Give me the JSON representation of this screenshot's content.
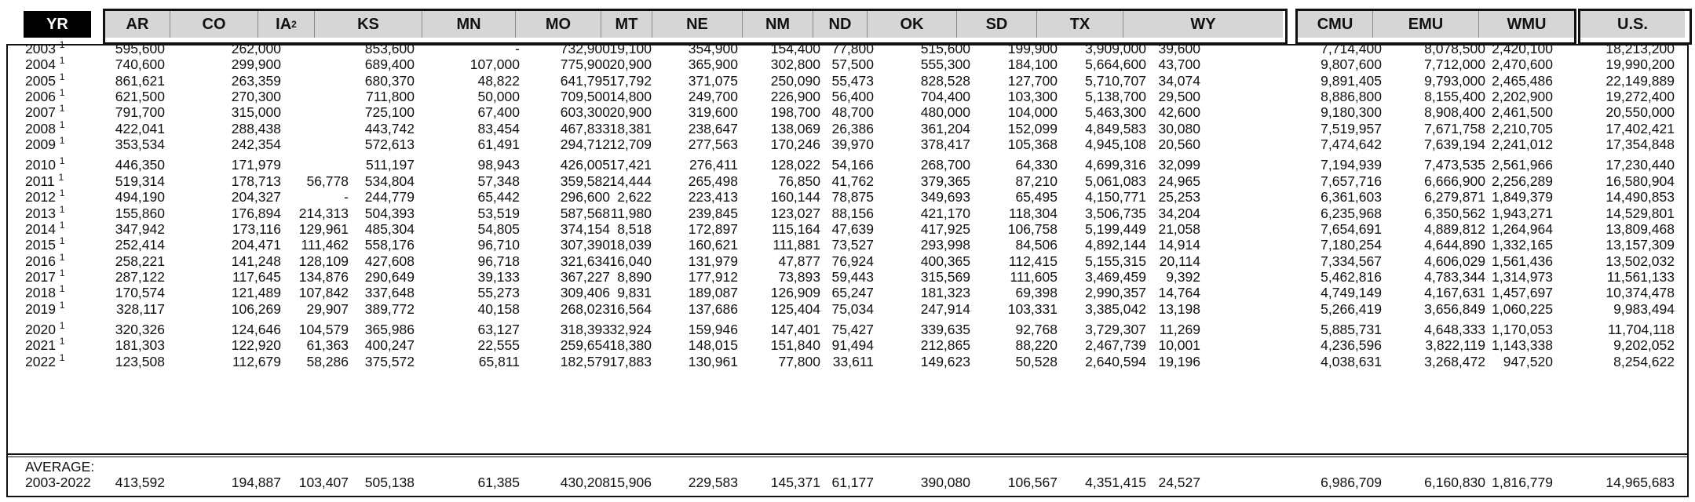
{
  "header": {
    "year_label": "YR",
    "states": [
      "AR",
      "CO",
      "IA",
      "KS",
      "MN",
      "MO",
      "MT",
      "NE",
      "NM",
      "ND",
      "OK",
      "SD",
      "TX",
      "WY"
    ],
    "ia_superscript": "2",
    "regions": [
      "CMU",
      "EMU",
      "WMU"
    ],
    "us": "U.S."
  },
  "rows": [
    {
      "yr": "2003",
      "sup": "1",
      "v": [
        "595,600",
        "262,000",
        "",
        "853,600",
        "-",
        "732,900",
        "19,100",
        "354,900",
        "154,400",
        "77,800",
        "515,600",
        "199,900",
        "3,909,000",
        "39,600"
      ],
      "r": [
        "7,714,400",
        "8,078,500",
        "2,420,100"
      ],
      "us": "18,213,200"
    },
    {
      "yr": "2004",
      "sup": "1",
      "v": [
        "740,600",
        "299,900",
        "",
        "689,400",
        "107,000",
        "775,900",
        "20,900",
        "365,900",
        "302,800",
        "57,500",
        "555,300",
        "184,100",
        "5,664,600",
        "43,700"
      ],
      "r": [
        "9,807,600",
        "7,712,000",
        "2,470,600"
      ],
      "us": "19,990,200"
    },
    {
      "yr": "2005",
      "sup": "1",
      "v": [
        "861,621",
        "263,359",
        "",
        "680,370",
        "48,822",
        "641,795",
        "17,792",
        "371,075",
        "250,090",
        "55,473",
        "828,528",
        "127,700",
        "5,710,707",
        "34,074"
      ],
      "r": [
        "9,891,405",
        "9,793,000",
        "2,465,486"
      ],
      "us": "22,149,889"
    },
    {
      "yr": "2006",
      "sup": "1",
      "v": [
        "621,500",
        "270,300",
        "",
        "711,800",
        "50,000",
        "709,500",
        "14,800",
        "249,700",
        "226,900",
        "56,400",
        "704,400",
        "103,300",
        "5,138,700",
        "29,500"
      ],
      "r": [
        "8,886,800",
        "8,155,400",
        "2,202,900"
      ],
      "us": "19,272,400"
    },
    {
      "yr": "2007",
      "sup": "1",
      "v": [
        "791,700",
        "315,000",
        "",
        "725,100",
        "67,400",
        "603,300",
        "20,900",
        "319,600",
        "198,700",
        "48,700",
        "480,000",
        "104,000",
        "5,463,300",
        "42,600"
      ],
      "r": [
        "9,180,300",
        "8,908,400",
        "2,461,500"
      ],
      "us": "20,550,000"
    },
    {
      "yr": "2008",
      "sup": "1",
      "v": [
        "422,041",
        "288,438",
        "",
        "443,742",
        "83,454",
        "467,833",
        "18,381",
        "238,647",
        "138,069",
        "26,386",
        "361,204",
        "152,099",
        "4,849,583",
        "30,080"
      ],
      "r": [
        "7,519,957",
        "7,671,758",
        "2,210,705"
      ],
      "us": "17,402,421"
    },
    {
      "yr": "2009",
      "sup": "1",
      "v": [
        "353,534",
        "242,354",
        "",
        "572,613",
        "61,491",
        "294,712",
        "12,709",
        "277,563",
        "170,246",
        "39,970",
        "378,417",
        "105,368",
        "4,945,108",
        "20,560"
      ],
      "r": [
        "7,474,642",
        "7,639,194",
        "2,241,012"
      ],
      "us": "17,354,848"
    },
    {
      "yr": "2010",
      "sup": "1",
      "v": [
        "446,350",
        "171,979",
        "",
        "511,197",
        "98,943",
        "426,005",
        "17,421",
        "276,411",
        "128,022",
        "54,166",
        "268,700",
        "64,330",
        "4,699,316",
        "32,099"
      ],
      "r": [
        "7,194,939",
        "7,473,535",
        "2,561,966"
      ],
      "us": "17,230,440"
    },
    {
      "yr": "2011",
      "sup": "1",
      "v": [
        "519,314",
        "178,713",
        "56,778",
        "534,804",
        "57,348",
        "359,582",
        "14,444",
        "265,498",
        "76,850",
        "41,762",
        "379,365",
        "87,210",
        "5,061,083",
        "24,965"
      ],
      "r": [
        "7,657,716",
        "6,666,900",
        "2,256,289"
      ],
      "us": "16,580,904"
    },
    {
      "yr": "2012",
      "sup": "1",
      "v": [
        "494,190",
        "204,327",
        "-",
        "244,779",
        "65,442",
        "296,600",
        "2,622",
        "223,413",
        "160,144",
        "78,875",
        "349,693",
        "65,495",
        "4,150,771",
        "25,253"
      ],
      "r": [
        "6,361,603",
        "6,279,871",
        "1,849,379"
      ],
      "us": "14,490,853"
    },
    {
      "yr": "2013",
      "sup": "1",
      "v": [
        "155,860",
        "176,894",
        "214,313",
        "504,393",
        "53,519",
        "587,568",
        "11,980",
        "239,845",
        "123,027",
        "88,156",
        "421,170",
        "118,304",
        "3,506,735",
        "34,204"
      ],
      "r": [
        "6,235,968",
        "6,350,562",
        "1,943,271"
      ],
      "us": "14,529,801"
    },
    {
      "yr": "2014",
      "sup": "1",
      "v": [
        "347,942",
        "173,116",
        "129,961",
        "485,304",
        "54,805",
        "374,154",
        "8,518",
        "172,897",
        "115,164",
        "47,639",
        "417,925",
        "106,758",
        "5,199,449",
        "21,058"
      ],
      "r": [
        "7,654,691",
        "4,889,812",
        "1,264,964"
      ],
      "us": "13,809,468"
    },
    {
      "yr": "2015",
      "sup": "1",
      "v": [
        "252,414",
        "204,471",
        "111,462",
        "558,176",
        "96,710",
        "307,390",
        "18,039",
        "160,621",
        "111,881",
        "73,527",
        "293,998",
        "84,506",
        "4,892,144",
        "14,914"
      ],
      "r": [
        "7,180,254",
        "4,644,890",
        "1,332,165"
      ],
      "us": "13,157,309"
    },
    {
      "yr": "2016",
      "sup": "1",
      "v": [
        "258,221",
        "141,248",
        "128,109",
        "427,608",
        "96,718",
        "321,634",
        "16,040",
        "131,979",
        "47,877",
        "76,924",
        "400,365",
        "112,415",
        "5,155,315",
        "20,114"
      ],
      "r": [
        "7,334,567",
        "4,606,029",
        "1,561,436"
      ],
      "us": "13,502,032"
    },
    {
      "yr": "2017",
      "sup": "1",
      "v": [
        "287,122",
        "117,645",
        "134,876",
        "290,649",
        "39,133",
        "367,227",
        "8,890",
        "177,912",
        "73,893",
        "59,443",
        "315,569",
        "111,605",
        "3,469,459",
        "9,392"
      ],
      "r": [
        "5,462,816",
        "4,783,344",
        "1,314,973"
      ],
      "us": "11,561,133"
    },
    {
      "yr": "2018",
      "sup": "1",
      "v": [
        "170,574",
        "121,489",
        "107,842",
        "337,648",
        "55,273",
        "309,406",
        "9,831",
        "189,087",
        "126,909",
        "65,247",
        "181,323",
        "69,398",
        "2,990,357",
        "14,764"
      ],
      "r": [
        "4,749,149",
        "4,167,631",
        "1,457,697"
      ],
      "us": "10,374,478"
    },
    {
      "yr": "2019",
      "sup": "1",
      "v": [
        "328,117",
        "106,269",
        "29,907",
        "389,772",
        "40,158",
        "268,023",
        "16,564",
        "137,686",
        "125,404",
        "75,034",
        "247,914",
        "103,331",
        "3,385,042",
        "13,198"
      ],
      "r": [
        "5,266,419",
        "3,656,849",
        "1,060,225"
      ],
      "us": "9,983,494"
    },
    {
      "yr": "2020",
      "sup": "1",
      "v": [
        "320,326",
        "124,646",
        "104,579",
        "365,986",
        "63,127",
        "318,393",
        "32,924",
        "159,946",
        "147,401",
        "75,427",
        "339,635",
        "92,768",
        "3,729,307",
        "11,269"
      ],
      "r": [
        "5,885,731",
        "4,648,333",
        "1,170,053"
      ],
      "us": "11,704,118"
    },
    {
      "yr": "2021",
      "sup": "1",
      "v": [
        "181,303",
        "122,920",
        "61,363",
        "400,247",
        "22,555",
        "259,654",
        "18,380",
        "148,015",
        "151,840",
        "91,494",
        "212,865",
        "88,220",
        "2,467,739",
        "10,001"
      ],
      "r": [
        "4,236,596",
        "3,822,119",
        "1,143,338"
      ],
      "us": "9,202,052"
    },
    {
      "yr": "2022",
      "sup": "1",
      "v": [
        "123,508",
        "112,679",
        "58,286",
        "375,572",
        "65,811",
        "182,579",
        "17,883",
        "130,961",
        "77,800",
        "33,611",
        "149,623",
        "50,528",
        "2,640,594",
        "19,196"
      ],
      "r": [
        "4,038,631",
        "3,268,472",
        "947,520"
      ],
      "us": "8,254,622"
    }
  ],
  "average": {
    "label": "AVERAGE:",
    "period": "2003-2022",
    "v": [
      "413,592",
      "194,887",
      "103,407",
      "505,138",
      "61,385",
      "430,208",
      "15,906",
      "229,583",
      "145,371",
      "61,177",
      "390,080",
      "106,567",
      "4,351,415",
      "24,527"
    ],
    "r": [
      "6,986,709",
      "6,160,830",
      "1,816,779"
    ],
    "us": "14,965,683"
  }
}
